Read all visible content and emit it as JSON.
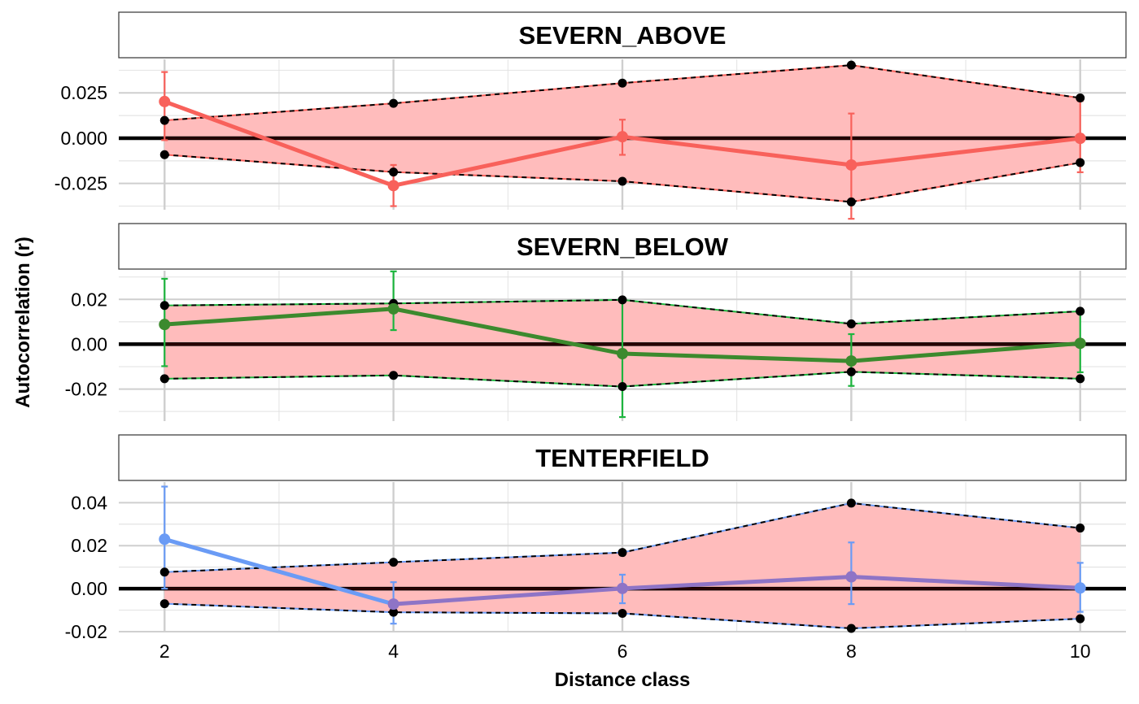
{
  "chart_data": {
    "type": "line",
    "xlabel": "Distance class",
    "ylabel": "Autocorrelation (r)",
    "x_ticks": [
      2,
      4,
      6,
      8,
      10
    ],
    "xlim": [
      1.6,
      10.4
    ],
    "envelope_fill": "#ffbcbc",
    "panels": [
      {
        "title": "SEVERN_ABOVE",
        "color": "#f8615b",
        "ylim": [
          -0.0395,
          0.0435
        ],
        "y_ticks": [
          -0.025,
          0.0,
          0.025
        ],
        "y_tick_labels": [
          "-0.025",
          "0.000",
          "0.025"
        ],
        "x": [
          2,
          4,
          6,
          8,
          10
        ],
        "r": [
          0.0202,
          -0.0262,
          0.0008,
          -0.0148,
          -0.0001
        ],
        "ci_low": [
          -0.0011,
          -0.0375,
          -0.0092,
          -0.0445,
          -0.0188
        ],
        "ci_high": [
          0.0365,
          -0.0148,
          0.0102,
          0.0136,
          0.0205
        ],
        "env_upper": [
          0.0098,
          0.0192,
          0.0304,
          0.0403,
          0.0222
        ],
        "env_lower": [
          -0.0091,
          -0.0187,
          -0.0238,
          -0.0352,
          -0.0135
        ]
      },
      {
        "title": "SEVERN_BELOW",
        "color": "#3c8a2e",
        "ci_color": "#1db53e",
        "ylim": [
          -0.0343,
          0.0328
        ],
        "y_ticks": [
          -0.02,
          0.0,
          0.02
        ],
        "y_tick_labels": [
          "-0.02",
          "0.00",
          "0.02"
        ],
        "x": [
          2,
          4,
          6,
          8,
          10
        ],
        "r": [
          0.0088,
          0.0158,
          -0.0042,
          -0.0075,
          0.0004
        ],
        "ci_low": [
          -0.0098,
          0.0063,
          -0.0325,
          -0.0186,
          -0.0125
        ],
        "ci_high": [
          0.0292,
          0.0325,
          0.0192,
          0.0045,
          0.0138
        ],
        "env_upper": [
          0.0173,
          0.0182,
          0.0198,
          0.0091,
          0.0147
        ],
        "env_lower": [
          -0.0154,
          -0.0139,
          -0.0189,
          -0.0123,
          -0.0154
        ]
      },
      {
        "title": "TENTERFIELD",
        "color": "#6a9bf5",
        "ci_color": "#6a9bf5",
        "line_colors": [
          "#6a9bf5",
          "#8e74c6",
          "#8e74c6",
          "#8e74c6"
        ],
        "point_colors": [
          "#6a9bf5",
          "#8e74c6",
          "#8e74c6",
          "#8e74c6",
          "#6a9bf5"
        ],
        "ylim": [
          -0.0204,
          0.0496
        ],
        "y_ticks": [
          -0.02,
          0.0,
          0.02,
          0.04
        ],
        "y_tick_labels": [
          "-0.02",
          "0.00",
          "0.02",
          "0.04"
        ],
        "x": [
          2,
          4,
          6,
          8,
          10
        ],
        "r": [
          0.023,
          -0.0072,
          0.0001,
          0.0055,
          0.0003
        ],
        "ci_low": [
          0.0,
          -0.0163,
          -0.0068,
          -0.0072,
          -0.0108
        ],
        "ci_high": [
          0.0475,
          0.003,
          0.0065,
          0.0215,
          0.012
        ],
        "env_upper": [
          0.0077,
          0.0123,
          0.0168,
          0.0398,
          0.0282
        ],
        "env_lower": [
          -0.007,
          -0.011,
          -0.0115,
          -0.0185,
          -0.014
        ]
      }
    ]
  }
}
